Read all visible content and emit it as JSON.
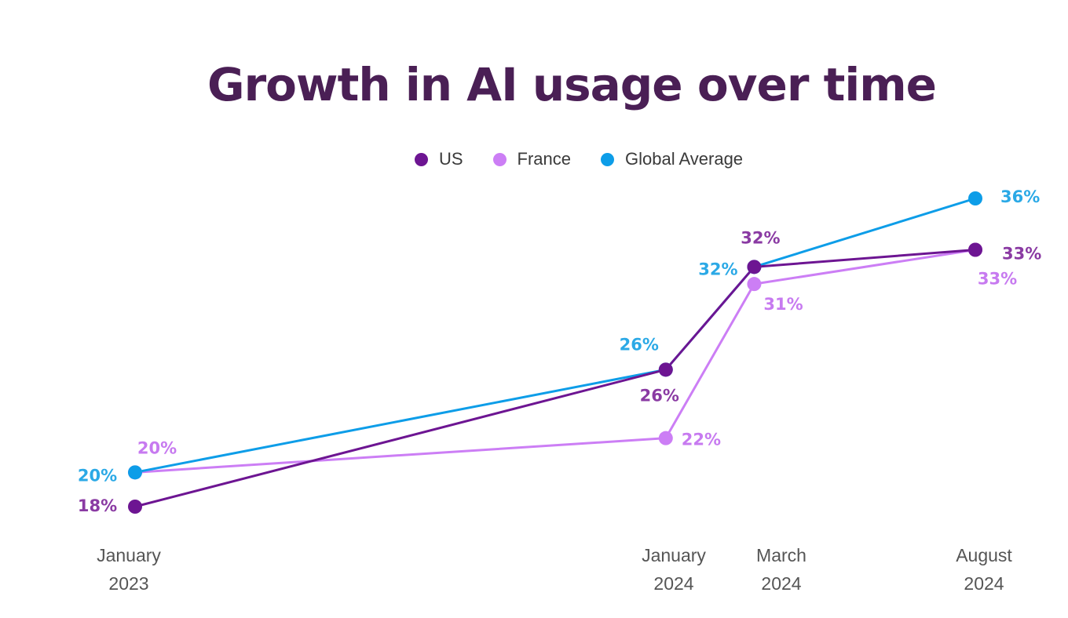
{
  "chart_data": {
    "type": "line",
    "title": "Growth in AI usage over time",
    "x": [
      {
        "line1": "January",
        "line2": "2023",
        "date": "2023-01"
      },
      {
        "line1": "January",
        "line2": "2024",
        "date": "2024-01"
      },
      {
        "line1": "March",
        "line2": "2024",
        "date": "2024-03"
      },
      {
        "line1": "August",
        "line2": "2024",
        "date": "2024-08"
      }
    ],
    "ylim": [
      16,
      38
    ],
    "legend_position": "top-center",
    "grid": false,
    "series": [
      {
        "name": "France",
        "color": "#cc7ef5",
        "values": [
          20,
          22,
          31,
          33
        ],
        "labels": [
          "20%",
          "22%",
          "31%",
          "33%"
        ]
      },
      {
        "name": "Global Average",
        "color": "#0d9de8",
        "values": [
          20,
          26,
          32,
          36
        ],
        "labels": [
          "20%",
          "26%",
          "32%",
          "36%"
        ]
      },
      {
        "name": "US",
        "color": "#6d1592",
        "values": [
          18,
          26,
          32,
          33
        ],
        "labels": [
          "18%",
          "26%",
          "32%",
          "33%"
        ]
      }
    ],
    "legend": [
      "US",
      "France",
      "Global Average"
    ]
  }
}
